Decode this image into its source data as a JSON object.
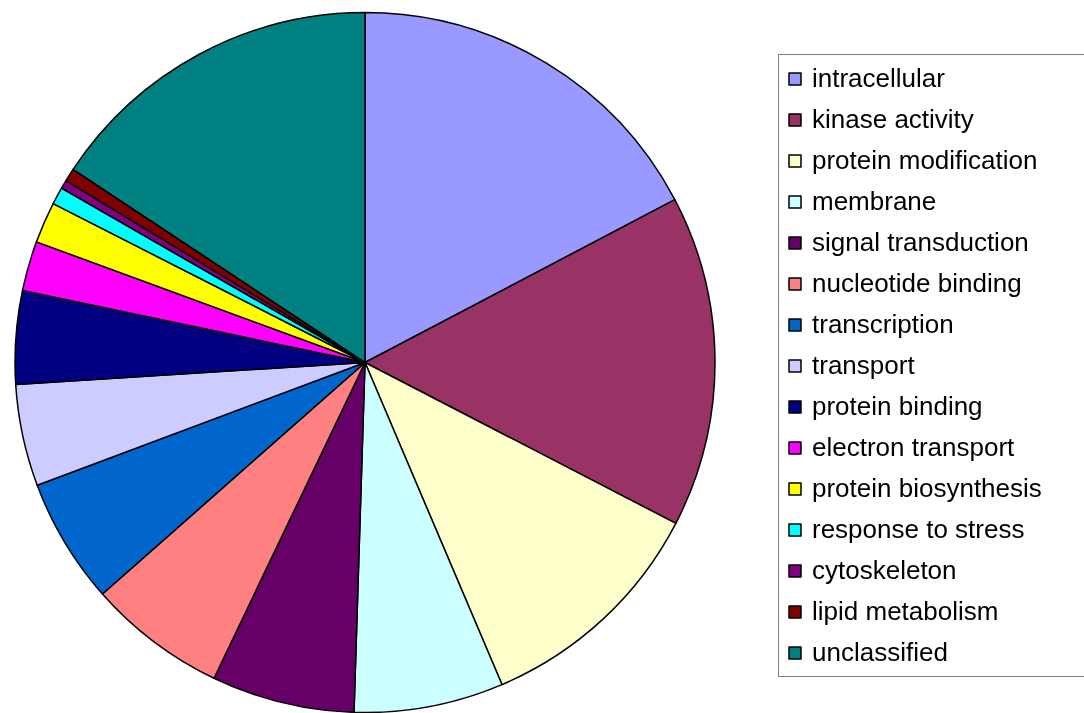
{
  "chart_data": {
    "type": "pie",
    "categories": [
      "intracellular",
      "kinase activity",
      "protein modification",
      "membrane",
      "signal transduction",
      "nucleotide binding",
      "transcription",
      "transport",
      "protein binding",
      "electron transport",
      "protein biosynthesis",
      "response to stress",
      "cytoskeleton",
      "lipid metabolism",
      "unclassified"
    ],
    "values": [
      17.3,
      15.3,
      11.0,
      6.9,
      6.6,
      6.4,
      5.8,
      4.7,
      4.3,
      2.3,
      1.9,
      0.8,
      0.4,
      0.6,
      15.7
    ],
    "colors": [
      "#9999ff",
      "#993366",
      "#ffffcc",
      "#ccffff",
      "#660066",
      "#ff8080",
      "#0066cc",
      "#ccccff",
      "#000080",
      "#ff00ff",
      "#ffff00",
      "#00ffff",
      "#800080",
      "#800000",
      "#008080"
    ],
    "legend": "right"
  }
}
